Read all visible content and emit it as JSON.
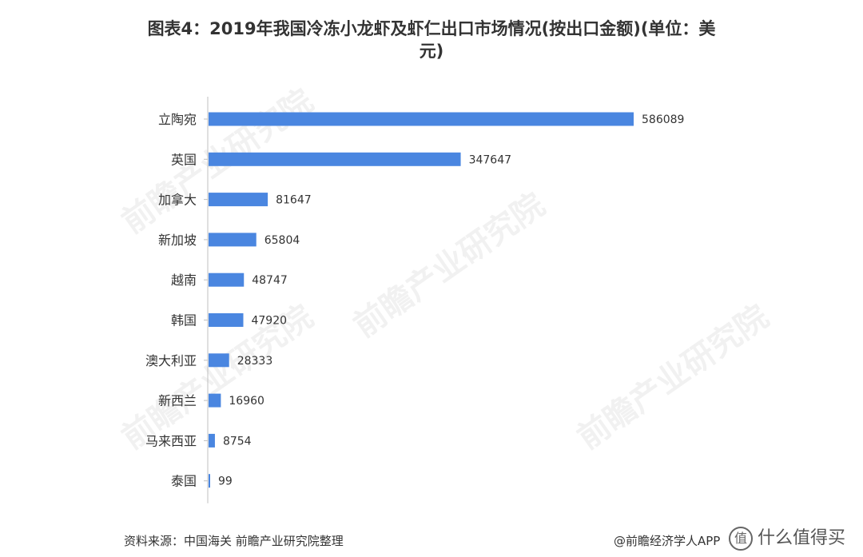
{
  "chart_data": {
    "type": "bar",
    "orientation": "horizontal",
    "title_line1": "图表4：2019年我国冷冻小龙虾及虾仁出口市场情况(按出口金额)(单位：美",
    "title_line2": "元)",
    "categories": [
      "立陶宛",
      "英国",
      "加拿大",
      "新加坡",
      "越南",
      "韩国",
      "澳大利亚",
      "新西兰",
      "马来西亚",
      "泰国"
    ],
    "values": [
      586089,
      347647,
      81647,
      65804,
      48747,
      47920,
      28333,
      16960,
      8754,
      99
    ],
    "xlim": [
      0,
      586089
    ],
    "grid": false,
    "legend": "none",
    "bar_color": "#4a86e0"
  },
  "footer": {
    "source": "资料来源：中国海关 前瞻产业研究院整理",
    "credit": "@前瞻经济学人APP",
    "site": "什么值得买",
    "site_icon": "值"
  },
  "watermark_text": "前瞻产业研究院"
}
